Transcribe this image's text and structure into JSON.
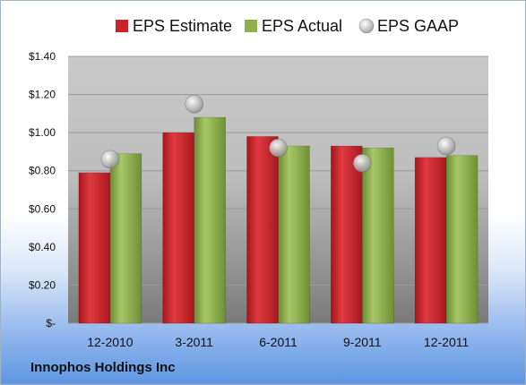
{
  "chart_data": {
    "type": "bar",
    "categories": [
      "12-2010",
      "3-2011",
      "6-2011",
      "9-2011",
      "12-2011"
    ],
    "series": [
      {
        "name": "EPS Estimate",
        "values": [
          0.79,
          1.0,
          0.98,
          0.93,
          0.87
        ],
        "color": "#cc2027",
        "kind": "bar"
      },
      {
        "name": "EPS Actual",
        "values": [
          0.89,
          1.08,
          0.93,
          0.92,
          0.88
        ],
        "color": "#8fb04a",
        "kind": "bar"
      },
      {
        "name": "EPS GAAP",
        "values": [
          0.86,
          1.15,
          0.92,
          0.84,
          0.93
        ],
        "color": "#b8b8b8",
        "kind": "marker"
      }
    ],
    "yticks": [
      "$1.40",
      "$1.20",
      "$1.00",
      "$0.80",
      "$0.60",
      "$0.40",
      "$0.20",
      "$-"
    ],
    "ylim": [
      0,
      1.4
    ],
    "legend_position": "top",
    "grid": true
  },
  "footer": {
    "company": "Innophos Holdings Inc"
  }
}
